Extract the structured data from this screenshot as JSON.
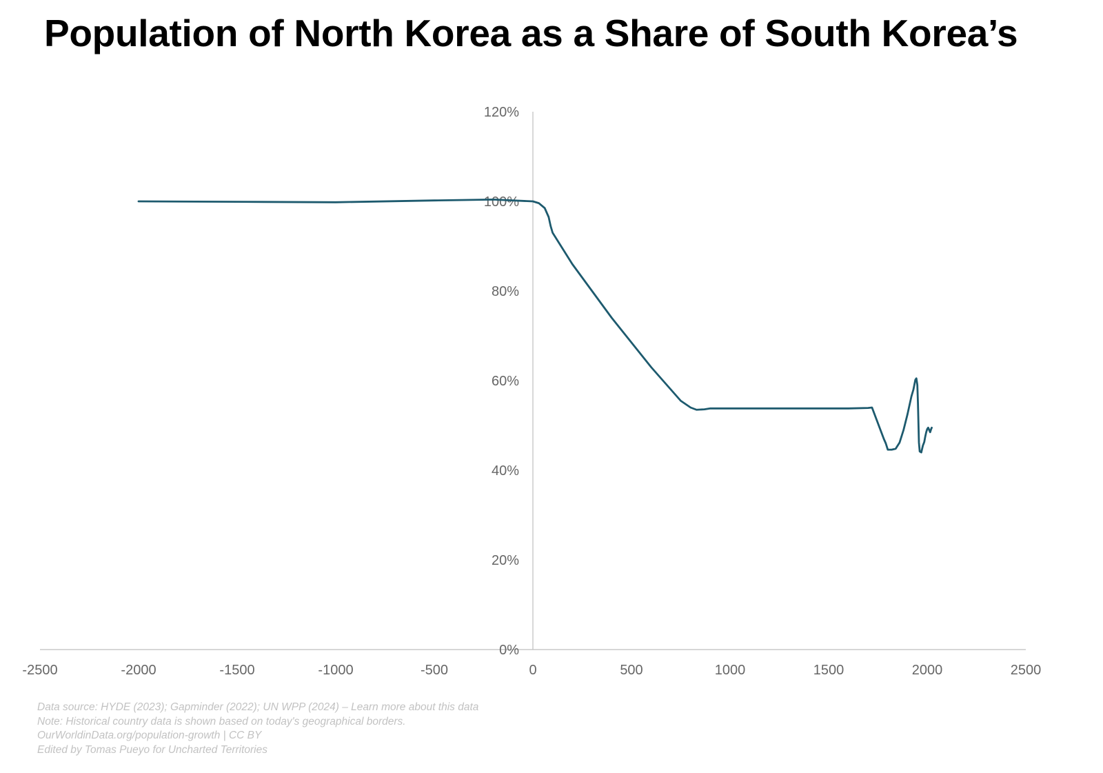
{
  "chart_data": {
    "type": "line",
    "title": "Population of North Korea as a Share of South Korea’s",
    "xlabel": "",
    "ylabel": "",
    "xlim": [
      -2500,
      2500
    ],
    "ylim": [
      0,
      1.2
    ],
    "x_ticks": [
      -2500,
      -2000,
      -1500,
      -1000,
      -500,
      0,
      500,
      1000,
      1500,
      2000,
      2500
    ],
    "x_tick_labels": [
      "-2500",
      "-2000",
      "-1500",
      "-1000",
      "-500",
      "0",
      "500",
      "1000",
      "1500",
      "2000",
      "2500"
    ],
    "y_ticks": [
      0,
      0.2,
      0.4,
      0.6,
      0.8,
      1.0,
      1.2
    ],
    "y_tick_labels": [
      "0%",
      "20%",
      "40%",
      "60%",
      "80%",
      "100%",
      "120%"
    ],
    "grid": false,
    "series": [
      {
        "name": "North Korea population as share of South Korea",
        "color": "#1d5a6e",
        "points": [
          [
            -2000,
            1.0
          ],
          [
            -1500,
            0.999
          ],
          [
            -1000,
            0.998
          ],
          [
            -500,
            1.002
          ],
          [
            -200,
            1.004
          ],
          [
            0,
            1.0
          ],
          [
            30,
            0.996
          ],
          [
            60,
            0.985
          ],
          [
            80,
            0.965
          ],
          [
            90,
            0.945
          ],
          [
            100,
            0.93
          ],
          [
            200,
            0.86
          ],
          [
            300,
            0.8
          ],
          [
            400,
            0.74
          ],
          [
            500,
            0.685
          ],
          [
            600,
            0.63
          ],
          [
            700,
            0.58
          ],
          [
            750,
            0.555
          ],
          [
            800,
            0.54
          ],
          [
            830,
            0.535
          ],
          [
            870,
            0.536
          ],
          [
            900,
            0.538
          ],
          [
            1000,
            0.538
          ],
          [
            1200,
            0.538
          ],
          [
            1400,
            0.538
          ],
          [
            1600,
            0.538
          ],
          [
            1700,
            0.539
          ],
          [
            1720,
            0.54
          ],
          [
            1750,
            0.505
          ],
          [
            1780,
            0.47
          ],
          [
            1790,
            0.46
          ],
          [
            1800,
            0.446
          ],
          [
            1820,
            0.446
          ],
          [
            1840,
            0.448
          ],
          [
            1860,
            0.462
          ],
          [
            1880,
            0.49
          ],
          [
            1900,
            0.525
          ],
          [
            1920,
            0.565
          ],
          [
            1930,
            0.58
          ],
          [
            1940,
            0.602
          ],
          [
            1945,
            0.605
          ],
          [
            1950,
            0.59
          ],
          [
            1953,
            0.55
          ],
          [
            1958,
            0.462
          ],
          [
            1962,
            0.442
          ],
          [
            1970,
            0.44
          ],
          [
            1978,
            0.455
          ],
          [
            1985,
            0.463
          ],
          [
            1990,
            0.475
          ],
          [
            1995,
            0.485
          ],
          [
            2000,
            0.492
          ],
          [
            2005,
            0.495
          ],
          [
            2010,
            0.49
          ],
          [
            2015,
            0.485
          ],
          [
            2020,
            0.492
          ],
          [
            2023,
            0.495
          ]
        ]
      }
    ]
  },
  "footer": {
    "line1": "Data source: HYDE (2023); Gapminder (2022); UN WPP (2024) – Learn more about this data",
    "line2": "Note: Historical country data is shown based on today's geographical borders.",
    "line3": "OurWorldinData.org/population-growth | CC BY",
    "line4": "Edited by Tomas Pueyo for Uncharted Territories"
  }
}
